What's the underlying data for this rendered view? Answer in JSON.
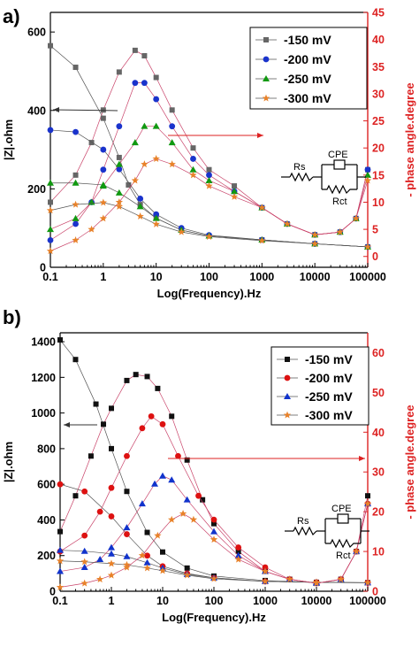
{
  "chart_data": [
    {
      "panel_label": "a)",
      "type": "line",
      "xlabel": "Log(Frequency).Hz",
      "ylabel_left": "|Z|.ohm",
      "ylabel_right": "- phase angle.degree",
      "x_scale": "log",
      "xlim": [
        0.1,
        100000
      ],
      "ylim_left": [
        0,
        650
      ],
      "ylim_right": [
        -2,
        45
      ],
      "x_ticks": [
        "0.1",
        "1",
        "10",
        "100",
        "1000",
        "10000",
        "100000"
      ],
      "y_ticks_left": [
        "0",
        "200",
        "400",
        "600"
      ],
      "y_ticks_right": [
        "0",
        "5",
        "10",
        "15",
        "20",
        "25",
        "30",
        "35",
        "40",
        "45"
      ],
      "legend_position": "top-right",
      "circuit_labels": {
        "rs": "Rs",
        "cpe": "CPE",
        "rct": "Rct"
      },
      "series": [
        {
          "name": "-150 mV",
          "color": "#666666",
          "marker": "square",
          "modulus": [
            [
              0.1,
              565
            ],
            [
              0.3,
              510
            ],
            [
              1,
              380
            ],
            [
              2,
              280
            ],
            [
              3,
              210
            ],
            [
              5,
              160
            ],
            [
              10,
              125
            ],
            [
              30,
              95
            ],
            [
              100,
              80
            ],
            [
              1000,
              70
            ],
            [
              10000,
              60
            ],
            [
              100000,
              52
            ]
          ],
          "phase": [
            [
              0.1,
              10
            ],
            [
              0.3,
              15
            ],
            [
              0.6,
              21
            ],
            [
              1,
              27
            ],
            [
              2,
              34
            ],
            [
              4,
              38
            ],
            [
              6,
              37
            ],
            [
              10,
              33
            ],
            [
              20,
              27
            ],
            [
              50,
              20
            ],
            [
              100,
              16
            ],
            [
              300,
              13
            ],
            [
              1000,
              9
            ],
            [
              3000,
              6
            ],
            [
              10000,
              4
            ],
            [
              30000,
              4.5
            ],
            [
              60000,
              7
            ],
            [
              100000,
              16
            ]
          ]
        },
        {
          "name": "-200 mV",
          "color": "#1a33cc",
          "marker": "circle",
          "modulus": [
            [
              0.1,
              350
            ],
            [
              0.3,
              345
            ],
            [
              1,
              300
            ],
            [
              2,
              250
            ],
            [
              5,
              175
            ],
            [
              10,
              135
            ],
            [
              30,
              100
            ],
            [
              100,
              82
            ],
            [
              1000,
              70
            ],
            [
              10000,
              60
            ],
            [
              100000,
              52
            ]
          ],
          "phase": [
            [
              0.1,
              3
            ],
            [
              0.3,
              6
            ],
            [
              0.6,
              10
            ],
            [
              1,
              16
            ],
            [
              2,
              24
            ],
            [
              4,
              32
            ],
            [
              6,
              32
            ],
            [
              10,
              29
            ],
            [
              20,
              24
            ],
            [
              50,
              18
            ],
            [
              100,
              15
            ],
            [
              300,
              12
            ],
            [
              1000,
              9
            ],
            [
              3000,
              6
            ],
            [
              10000,
              4
            ],
            [
              30000,
              4.5
            ],
            [
              60000,
              7
            ],
            [
              100000,
              16
            ]
          ]
        },
        {
          "name": "-250 mV",
          "color": "#119911",
          "marker": "triangle",
          "modulus": [
            [
              0.1,
              215
            ],
            [
              0.3,
              215
            ],
            [
              1,
              210
            ],
            [
              2,
              190
            ],
            [
              5,
              155
            ],
            [
              10,
              125
            ],
            [
              30,
              95
            ],
            [
              100,
              80
            ],
            [
              1000,
              70
            ],
            [
              10000,
              60
            ],
            [
              100000,
              52
            ]
          ],
          "phase": [
            [
              0.1,
              5
            ],
            [
              0.3,
              7
            ],
            [
              0.6,
              10
            ],
            [
              1,
              13
            ],
            [
              2,
              17
            ],
            [
              4,
              21
            ],
            [
              6,
              24
            ],
            [
              10,
              24
            ],
            [
              20,
              21
            ],
            [
              50,
              16
            ],
            [
              100,
              14
            ],
            [
              300,
              12
            ],
            [
              1000,
              9
            ],
            [
              3000,
              6
            ],
            [
              10000,
              4
            ],
            [
              30000,
              4.5
            ],
            [
              60000,
              7
            ],
            [
              100000,
              15
            ]
          ]
        },
        {
          "name": "-300 mV",
          "color": "#e8822a",
          "marker": "star",
          "modulus": [
            [
              0.1,
              145
            ],
            [
              0.3,
              160
            ],
            [
              1,
              165
            ],
            [
              2,
              155
            ],
            [
              5,
              130
            ],
            [
              10,
              110
            ],
            [
              30,
              90
            ],
            [
              100,
              78
            ],
            [
              1000,
              68
            ],
            [
              10000,
              60
            ],
            [
              100000,
              52
            ]
          ],
          "phase": [
            [
              0.1,
              1
            ],
            [
              0.3,
              3
            ],
            [
              0.6,
              5
            ],
            [
              1,
              7
            ],
            [
              2,
              10
            ],
            [
              4,
              14
            ],
            [
              6,
              17
            ],
            [
              10,
              18
            ],
            [
              20,
              17
            ],
            [
              50,
              15
            ],
            [
              100,
              13
            ],
            [
              300,
              11
            ],
            [
              1000,
              9
            ],
            [
              3000,
              6
            ],
            [
              10000,
              4
            ],
            [
              30000,
              4.5
            ],
            [
              60000,
              7
            ],
            [
              100000,
              14
            ]
          ]
        }
      ]
    },
    {
      "panel_label": "b)",
      "type": "line",
      "xlabel": "Log(Frequency).Hz",
      "ylabel_left": "|Z|.ohm",
      "ylabel_right": "- phase angle.degree",
      "x_scale": "log",
      "xlim": [
        0.1,
        100000
      ],
      "ylim_left": [
        0,
        1450
      ],
      "ylim_right": [
        0,
        65
      ],
      "x_ticks": [
        "0.1",
        "1",
        "10",
        "100",
        "1000",
        "10000",
        "100000"
      ],
      "y_ticks_left": [
        "0",
        "200",
        "400",
        "600",
        "800",
        "1000",
        "1200",
        "1400"
      ],
      "y_ticks_right": [
        "0",
        "10",
        "20",
        "30",
        "40",
        "50",
        "60"
      ],
      "legend_position": "top-right",
      "circuit_labels": {
        "rs": "Rs",
        "cpe": "CPE",
        "rct": "Rct"
      },
      "series": [
        {
          "name": "-150 mV",
          "color": "#111111",
          "marker": "square",
          "modulus": [
            [
              0.1,
              1410
            ],
            [
              0.2,
              1300
            ],
            [
              0.5,
              1050
            ],
            [
              1,
              800
            ],
            [
              2,
              560
            ],
            [
              5,
              330
            ],
            [
              10,
              220
            ],
            [
              30,
              130
            ],
            [
              100,
              85
            ],
            [
              1000,
              60
            ],
            [
              10000,
              50
            ],
            [
              100000,
              48
            ]
          ],
          "phase": [
            [
              0.1,
              15
            ],
            [
              0.2,
              24
            ],
            [
              0.4,
              34
            ],
            [
              0.7,
              42
            ],
            [
              1,
              46
            ],
            [
              2,
              53
            ],
            [
              3,
              54.5
            ],
            [
              5,
              54
            ],
            [
              8,
              51
            ],
            [
              15,
              44
            ],
            [
              30,
              33
            ],
            [
              60,
              23
            ],
            [
              100,
              17
            ],
            [
              300,
              10
            ],
            [
              1000,
              5
            ],
            [
              3000,
              3
            ],
            [
              10000,
              2
            ],
            [
              30000,
              3
            ],
            [
              60000,
              10
            ],
            [
              100000,
              24
            ]
          ]
        },
        {
          "name": "-200 mV",
          "color": "#dd1111",
          "marker": "circle",
          "modulus": [
            [
              0.1,
              600
            ],
            [
              0.3,
              560
            ],
            [
              1,
              420
            ],
            [
              2,
              320
            ],
            [
              5,
              200
            ],
            [
              10,
              140
            ],
            [
              30,
              100
            ],
            [
              100,
              75
            ],
            [
              1000,
              55
            ],
            [
              10000,
              50
            ],
            [
              100000,
              48
            ]
          ],
          "phase": [
            [
              0.1,
              10
            ],
            [
              0.3,
              14
            ],
            [
              0.6,
              20
            ],
            [
              1,
              26
            ],
            [
              2,
              34
            ],
            [
              4,
              41
            ],
            [
              6,
              44
            ],
            [
              10,
              42
            ],
            [
              20,
              34
            ],
            [
              50,
              24
            ],
            [
              100,
              18
            ],
            [
              300,
              11
            ],
            [
              1000,
              6
            ],
            [
              3000,
              3
            ],
            [
              10000,
              2
            ],
            [
              30000,
              3
            ],
            [
              60000,
              10
            ],
            [
              100000,
              22
            ]
          ]
        },
        {
          "name": "-250 mV",
          "color": "#1133cc",
          "marker": "triangle",
          "modulus": [
            [
              0.1,
              230
            ],
            [
              0.3,
              225
            ],
            [
              1,
              210
            ],
            [
              2,
              195
            ],
            [
              5,
              160
            ],
            [
              10,
              130
            ],
            [
              30,
              95
            ],
            [
              100,
              75
            ],
            [
              1000,
              55
            ],
            [
              10000,
              50
            ],
            [
              100000,
              48
            ]
          ],
          "phase": [
            [
              0.1,
              5
            ],
            [
              0.3,
              6
            ],
            [
              0.6,
              8
            ],
            [
              1,
              11
            ],
            [
              2,
              16
            ],
            [
              4,
              22
            ],
            [
              7,
              27
            ],
            [
              10,
              29
            ],
            [
              15,
              28
            ],
            [
              30,
              23
            ],
            [
              100,
              15
            ],
            [
              300,
              9
            ],
            [
              1000,
              5
            ],
            [
              3000,
              3
            ],
            [
              10000,
              2
            ],
            [
              30000,
              3
            ],
            [
              60000,
              10
            ],
            [
              100000,
              22
            ]
          ]
        },
        {
          "name": "-300 mV",
          "color": "#e8822a",
          "marker": "star",
          "modulus": [
            [
              0.1,
              170
            ],
            [
              0.3,
              165
            ],
            [
              1,
              155
            ],
            [
              2,
              148
            ],
            [
              5,
              130
            ],
            [
              10,
              115
            ],
            [
              30,
              90
            ],
            [
              100,
              70
            ],
            [
              1000,
              55
            ],
            [
              10000,
              50
            ],
            [
              100000,
              48
            ]
          ],
          "phase": [
            [
              0.1,
              1
            ],
            [
              0.3,
              2
            ],
            [
              0.6,
              3
            ],
            [
              1,
              4
            ],
            [
              2,
              6
            ],
            [
              4,
              9
            ],
            [
              8,
              14
            ],
            [
              15,
              18
            ],
            [
              25,
              19.5
            ],
            [
              40,
              18
            ],
            [
              100,
              13
            ],
            [
              300,
              8
            ],
            [
              1000,
              5
            ],
            [
              3000,
              3
            ],
            [
              10000,
              2
            ],
            [
              30000,
              3
            ],
            [
              60000,
              10
            ],
            [
              100000,
              22
            ]
          ]
        }
      ]
    }
  ]
}
